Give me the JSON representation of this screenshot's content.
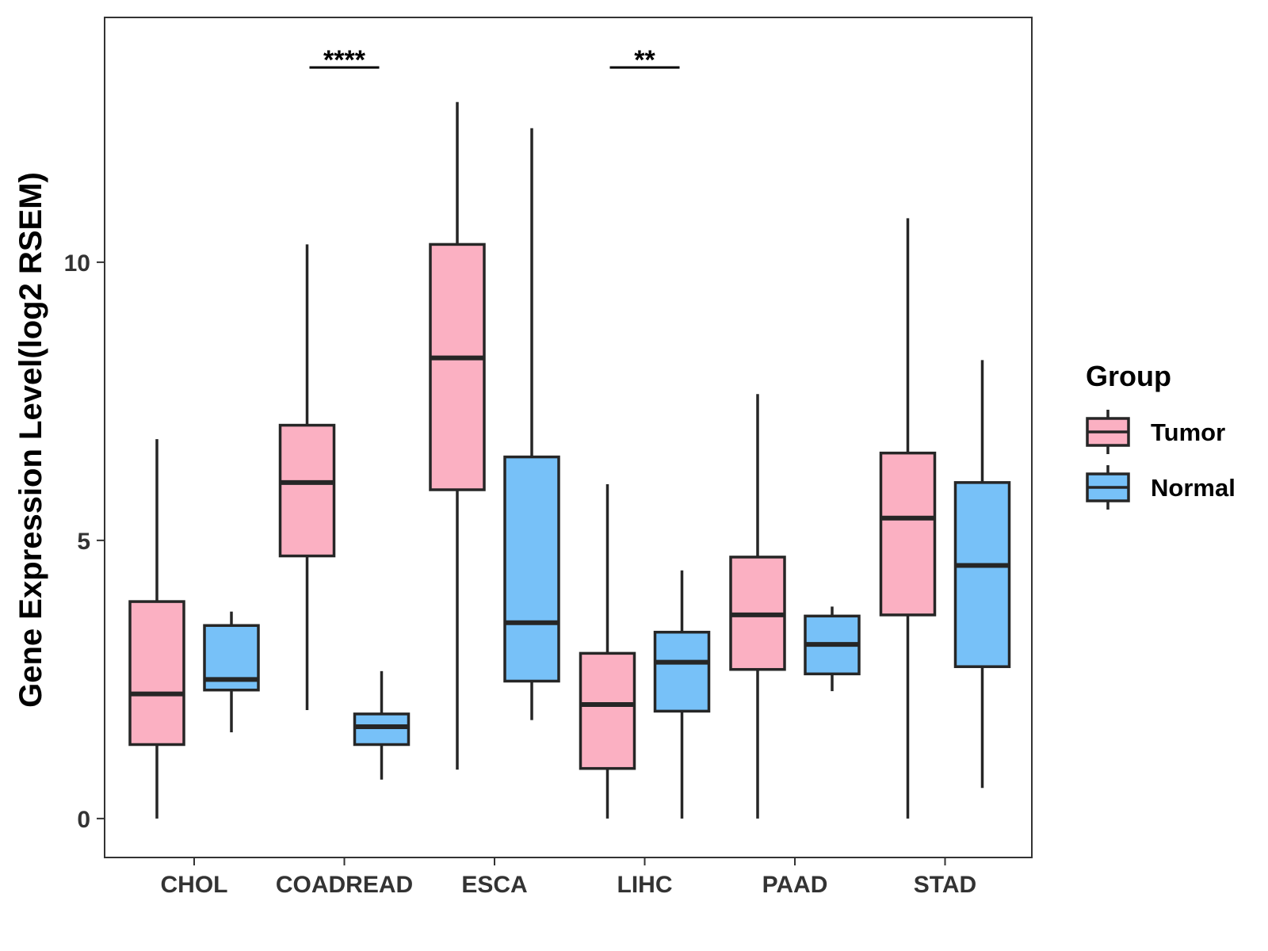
{
  "chart_data": {
    "type": "boxplot",
    "ylabel": "Gene Expression Level(log2 RSEM)",
    "xlabel": "",
    "ylim": [
      -0.7,
      14.4
    ],
    "yticks": [
      0,
      5,
      10
    ],
    "categories": [
      "CHOL",
      "COADREAD",
      "ESCA",
      "LIHC",
      "PAAD",
      "STAD"
    ],
    "legend": {
      "title": "Group",
      "position": "right",
      "entries": [
        {
          "name": "Tumor",
          "color": "#FBB0C2"
        },
        {
          "name": "Normal",
          "color": "#77C1F8"
        }
      ]
    },
    "series": [
      {
        "name": "Tumor",
        "color": "#FBB0C2",
        "boxes": [
          {
            "category": "CHOL",
            "min": 0.0,
            "q1": 1.33,
            "median": 2.24,
            "q3": 3.9,
            "max": 6.82
          },
          {
            "category": "COADREAD",
            "min": 1.95,
            "q1": 4.72,
            "median": 6.04,
            "q3": 7.07,
            "max": 10.32
          },
          {
            "category": "ESCA",
            "min": 0.88,
            "q1": 5.91,
            "median": 8.28,
            "q3": 10.32,
            "max": 12.88
          },
          {
            "category": "LIHC",
            "min": 0.0,
            "q1": 0.9,
            "median": 2.05,
            "q3": 2.97,
            "max": 6.01
          },
          {
            "category": "PAAD",
            "min": 0.0,
            "q1": 2.68,
            "median": 3.66,
            "q3": 4.7,
            "max": 7.63
          },
          {
            "category": "STAD",
            "min": 0.0,
            "q1": 3.66,
            "median": 5.4,
            "q3": 6.57,
            "max": 10.79
          }
        ]
      },
      {
        "name": "Normal",
        "color": "#77C1F8",
        "boxes": [
          {
            "category": "CHOL",
            "min": 1.55,
            "q1": 2.31,
            "median": 2.5,
            "q3": 3.47,
            "max": 3.72
          },
          {
            "category": "COADREAD",
            "min": 0.7,
            "q1": 1.33,
            "median": 1.65,
            "q3": 1.88,
            "max": 2.65
          },
          {
            "category": "ESCA",
            "min": 1.77,
            "q1": 2.47,
            "median": 3.52,
            "q3": 6.5,
            "max": 12.41
          },
          {
            "category": "LIHC",
            "min": 0.0,
            "q1": 1.93,
            "median": 2.81,
            "q3": 3.35,
            "max": 4.46
          },
          {
            "category": "PAAD",
            "min": 2.29,
            "q1": 2.6,
            "median": 3.13,
            "q3": 3.64,
            "max": 3.81
          },
          {
            "category": "STAD",
            "min": 0.55,
            "q1": 2.73,
            "median": 4.55,
            "q3": 6.04,
            "max": 8.24
          }
        ]
      }
    ],
    "annotations": [
      {
        "category": "COADREAD",
        "label": "****",
        "y": 13.5
      },
      {
        "category": "LIHC",
        "label": "**",
        "y": 13.5
      }
    ]
  }
}
